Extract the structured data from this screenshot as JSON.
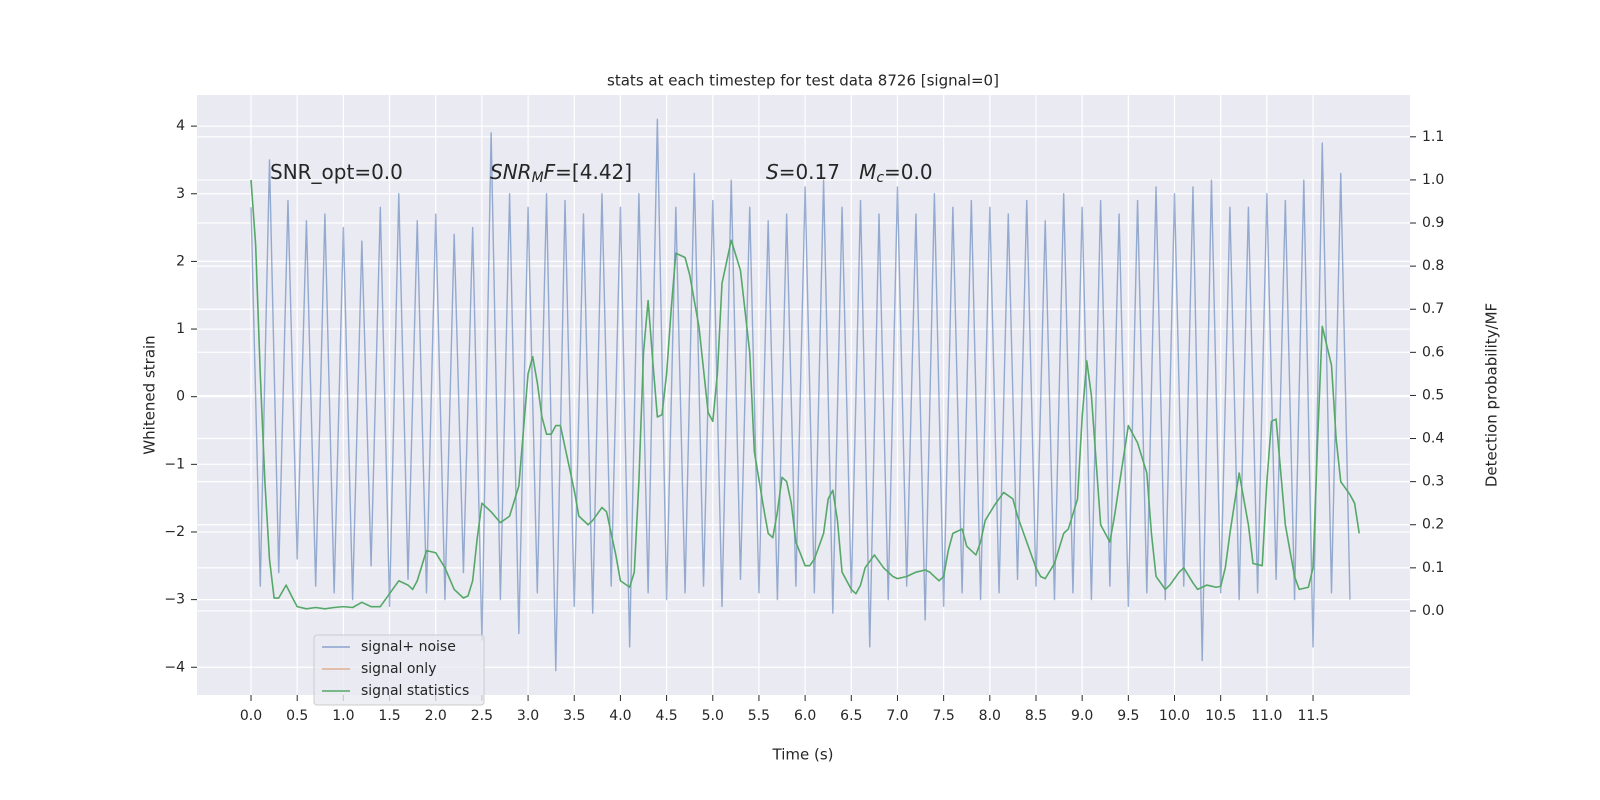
{
  "chart_data": {
    "type": "line",
    "title": "stats at each timestep for test data 8726 [signal=0]",
    "xlabel": "Time (s)",
    "ylabel": "Whitened strain",
    "y2label": "Detection probability/MF",
    "xlim": [
      -0.585,
      12.55
    ],
    "ylim": [
      -4.41,
      4.46
    ],
    "y2lim": [
      -0.195,
      1.197
    ],
    "xticks": [
      {
        "value": 0,
        "label": "0.0"
      },
      0.5,
      {
        "value": 1,
        "label": "1.0"
      },
      1.5,
      {
        "value": 2,
        "label": "2.0"
      },
      2.5,
      {
        "value": 3,
        "label": "3.0"
      },
      3.5,
      {
        "value": 4,
        "label": "4.0"
      },
      4.5,
      {
        "value": 5,
        "label": "5.0"
      },
      5.5,
      {
        "value": 6,
        "label": "6.0"
      },
      6.5,
      {
        "value": 7,
        "label": "7.0"
      },
      7.5,
      {
        "value": 8,
        "label": "8.0"
      },
      8.5,
      {
        "value": 9,
        "label": "9.0"
      },
      9.5,
      {
        "value": 10,
        "label": "10.0"
      },
      10.5,
      {
        "value": 11,
        "label": "11.0"
      },
      11.5
    ],
    "yticks": [
      {
        "value": -4,
        "label": "−4"
      },
      {
        "value": -3,
        "label": "−3"
      },
      {
        "value": -2,
        "label": "−2"
      },
      {
        "value": -1,
        "label": "−1"
      },
      0,
      1,
      2,
      3,
      4
    ],
    "y2ticks": [
      {
        "value": 0,
        "label": "0.0"
      },
      0.1,
      0.2,
      0.3,
      0.4,
      0.5,
      0.6,
      0.7,
      0.8,
      0.9,
      {
        "value": 1,
        "label": "1.0"
      },
      1.1
    ],
    "grid": true,
    "legend": "lower left",
    "annotations": [
      [
        {
          "text": "SNR_opt=0.0"
        }
      ],
      [
        {
          "text": "SNR",
          "italic": true
        },
        {
          "text": "M",
          "italic": true,
          "sub": true
        },
        {
          "text": "F",
          "italic": true
        },
        {
          "text": "=[4.42]"
        }
      ],
      [
        {
          "text": "S",
          "italic": true
        },
        {
          "text": "=0.17   "
        },
        {
          "text": "M",
          "italic": true
        },
        {
          "text": "c",
          "italic": true,
          "sub": true
        },
        {
          "text": "=0.0"
        }
      ]
    ],
    "series": [
      {
        "name": "signal+ noise",
        "color": "#4c72b0",
        "x": [
          0,
          0.1,
          0.2,
          0.3,
          0.4,
          0.5,
          0.6,
          0.7,
          0.8,
          0.9,
          1,
          1.1,
          1.2,
          1.3,
          1.4,
          1.5,
          1.6,
          1.7,
          1.8,
          1.9,
          2,
          2.1,
          2.2,
          2.3,
          2.4,
          2.5,
          2.6,
          2.7,
          2.8,
          2.9,
          3,
          3.1,
          3.2,
          3.3,
          3.4,
          3.5,
          3.6,
          3.7,
          3.8,
          3.9,
          4,
          4.1,
          4.2,
          4.3,
          4.4,
          4.5,
          4.6,
          4.7,
          4.8,
          4.9,
          5,
          5.1,
          5.2,
          5.3,
          5.4,
          5.5,
          5.6,
          5.7,
          5.8,
          5.9,
          6,
          6.1,
          6.2,
          6.3,
          6.4,
          6.5,
          6.6,
          6.7,
          6.8,
          6.9,
          7,
          7.1,
          7.2,
          7.3,
          7.4,
          7.5,
          7.6,
          7.7,
          7.8,
          7.9,
          8,
          8.1,
          8.2,
          8.3,
          8.4,
          8.5,
          8.6,
          8.7,
          8.8,
          8.9,
          9,
          9.1,
          9.2,
          9.3,
          9.4,
          9.5,
          9.6,
          9.7,
          9.8,
          9.9,
          10,
          10.1,
          10.2,
          10.3,
          10.4,
          10.5,
          10.6,
          10.7,
          10.8,
          10.9,
          11,
          11.1,
          11.2,
          11.3,
          11.4,
          11.5,
          11.6,
          11.7,
          11.8,
          11.9
        ],
        "values": [
          2.8,
          -2.8,
          3.5,
          -2.6,
          2.9,
          -2.4,
          2.6,
          -2.8,
          2.7,
          -2.9,
          2.5,
          -3.0,
          2.3,
          -2.5,
          2.8,
          -3.1,
          3.0,
          -2.7,
          2.6,
          -2.9,
          2.7,
          -3.0,
          2.4,
          -2.6,
          2.5,
          -3.6,
          3.9,
          -3.0,
          3.0,
          -3.5,
          2.8,
          -2.9,
          3.0,
          -4.05,
          2.9,
          -3.1,
          2.7,
          -3.2,
          3.0,
          -2.8,
          2.8,
          -3.7,
          3.0,
          -2.9,
          4.1,
          -3.0,
          2.8,
          -2.9,
          3.3,
          -2.8,
          2.9,
          -3.1,
          3.2,
          -2.7,
          2.8,
          -2.9,
          2.6,
          -3.0,
          2.7,
          -2.8,
          3.1,
          -2.9,
          3.2,
          -3.2,
          2.8,
          -2.9,
          2.9,
          -3.7,
          2.7,
          -3.0,
          3.1,
          -2.8,
          2.7,
          -3.3,
          3.0,
          -3.1,
          2.8,
          -2.9,
          2.9,
          -3.0,
          2.8,
          -2.9,
          2.7,
          -2.7,
          2.9,
          -2.8,
          2.6,
          -3.0,
          3.0,
          -2.9,
          2.8,
          -3.0,
          2.9,
          -2.8,
          2.7,
          -3.1,
          2.9,
          -2.9,
          3.1,
          -3.0,
          3.0,
          -2.8,
          3.1,
          -3.9,
          3.2,
          -2.9,
          2.8,
          -3.0,
          2.8,
          -2.9,
          3.0,
          -2.7,
          2.9,
          -3.0,
          3.2,
          -3.7,
          3.75,
          -2.9,
          3.3,
          -3.0
        ]
      },
      {
        "name": "signal only",
        "color": "#dd8452",
        "x": [],
        "values": []
      },
      {
        "name": "signal statistics",
        "color": "#55a868",
        "axis": "y2",
        "x": [
          0,
          0.05,
          0.1,
          0.15,
          0.2,
          0.25,
          0.3,
          0.38,
          0.45,
          0.5,
          0.6,
          0.7,
          0.8,
          0.9,
          1.0,
          1.1,
          1.2,
          1.3,
          1.4,
          1.5,
          1.6,
          1.7,
          1.75,
          1.8,
          1.9,
          2.0,
          2.1,
          2.2,
          2.3,
          2.35,
          2.4,
          2.45,
          2.5,
          2.6,
          2.7,
          2.8,
          2.9,
          2.95,
          3.0,
          3.05,
          3.1,
          3.15,
          3.2,
          3.25,
          3.3,
          3.35,
          3.4,
          3.5,
          3.55,
          3.65,
          3.7,
          3.8,
          3.85,
          3.9,
          3.95,
          4.0,
          4.1,
          4.15,
          4.2,
          4.25,
          4.3,
          4.35,
          4.4,
          4.45,
          4.5,
          4.55,
          4.6,
          4.7,
          4.75,
          4.85,
          4.95,
          5.0,
          5.05,
          5.1,
          5.2,
          5.3,
          5.4,
          5.45,
          5.55,
          5.6,
          5.65,
          5.7,
          5.75,
          5.8,
          5.85,
          5.9,
          6.0,
          6.05,
          6.1,
          6.2,
          6.25,
          6.3,
          6.35,
          6.4,
          6.5,
          6.55,
          6.6,
          6.65,
          6.75,
          6.85,
          6.95,
          7.0,
          7.1,
          7.2,
          7.3,
          7.35,
          7.45,
          7.5,
          7.55,
          7.6,
          7.7,
          7.75,
          7.85,
          7.9,
          7.95,
          8.05,
          8.15,
          8.25,
          8.3,
          8.4,
          8.5,
          8.55,
          8.6,
          8.7,
          8.8,
          8.85,
          8.95,
          9.0,
          9.05,
          9.1,
          9.2,
          9.3,
          9.35,
          9.45,
          9.5,
          9.6,
          9.7,
          9.75,
          9.8,
          9.9,
          9.95,
          10.05,
          10.1,
          10.2,
          10.25,
          10.35,
          10.45,
          10.5,
          10.55,
          10.6,
          10.7,
          10.8,
          10.85,
          10.95,
          11.0,
          11.05,
          11.1,
          11.2,
          11.3,
          11.35,
          11.45,
          11.5,
          11.55,
          11.6,
          11.7,
          11.75,
          11.8,
          11.9,
          11.95,
          12.0
        ],
        "values": [
          1.0,
          0.85,
          0.55,
          0.3,
          0.12,
          0.03,
          0.03,
          0.06,
          0.03,
          0.01,
          0.005,
          0.008,
          0.005,
          0.008,
          0.01,
          0.008,
          0.02,
          0.01,
          0.01,
          0.04,
          0.07,
          0.06,
          0.05,
          0.07,
          0.14,
          0.135,
          0.1,
          0.05,
          0.03,
          0.035,
          0.07,
          0.17,
          0.25,
          0.23,
          0.205,
          0.22,
          0.29,
          0.42,
          0.55,
          0.59,
          0.53,
          0.45,
          0.41,
          0.41,
          0.43,
          0.43,
          0.38,
          0.28,
          0.22,
          0.2,
          0.21,
          0.24,
          0.23,
          0.18,
          0.13,
          0.07,
          0.055,
          0.09,
          0.3,
          0.6,
          0.72,
          0.58,
          0.45,
          0.455,
          0.55,
          0.7,
          0.83,
          0.82,
          0.78,
          0.66,
          0.46,
          0.44,
          0.55,
          0.76,
          0.86,
          0.79,
          0.6,
          0.37,
          0.24,
          0.18,
          0.17,
          0.23,
          0.31,
          0.3,
          0.25,
          0.16,
          0.105,
          0.105,
          0.12,
          0.18,
          0.26,
          0.28,
          0.21,
          0.09,
          0.05,
          0.04,
          0.06,
          0.1,
          0.13,
          0.1,
          0.08,
          0.075,
          0.08,
          0.09,
          0.095,
          0.09,
          0.07,
          0.08,
          0.14,
          0.18,
          0.19,
          0.15,
          0.13,
          0.16,
          0.21,
          0.245,
          0.275,
          0.26,
          0.22,
          0.16,
          0.1,
          0.08,
          0.075,
          0.11,
          0.18,
          0.19,
          0.26,
          0.45,
          0.58,
          0.5,
          0.2,
          0.16,
          0.22,
          0.36,
          0.43,
          0.39,
          0.32,
          0.18,
          0.08,
          0.05,
          0.06,
          0.09,
          0.1,
          0.065,
          0.05,
          0.06,
          0.055,
          0.057,
          0.1,
          0.18,
          0.32,
          0.2,
          0.11,
          0.105,
          0.3,
          0.44,
          0.445,
          0.2,
          0.08,
          0.05,
          0.055,
          0.1,
          0.4,
          0.66,
          0.57,
          0.4,
          0.3,
          0.27,
          0.25,
          0.18
        ]
      }
    ]
  }
}
